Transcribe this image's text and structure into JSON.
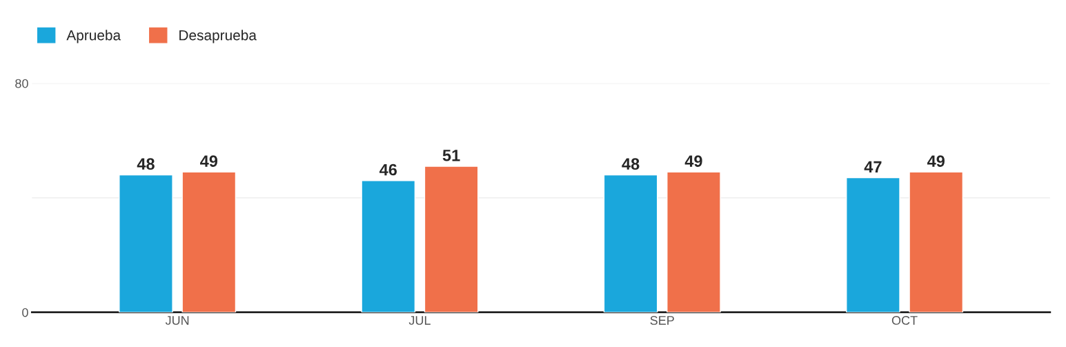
{
  "chart_data": {
    "type": "bar",
    "categories": [
      "JUN",
      "JUL",
      "SEP",
      "OCT"
    ],
    "series": [
      {
        "name": "Aprueba",
        "color": "#1aa7dc",
        "values": [
          48,
          46,
          48,
          47
        ]
      },
      {
        "name": "Desaprueba",
        "color": "#f0704a",
        "values": [
          49,
          51,
          49,
          49
        ]
      }
    ],
    "ylim": [
      0,
      80
    ],
    "yticks": [
      0,
      {
        "value": 40,
        "label": null
      },
      80
    ],
    "grid": "y",
    "legend": "top left",
    "data_labels": true
  }
}
